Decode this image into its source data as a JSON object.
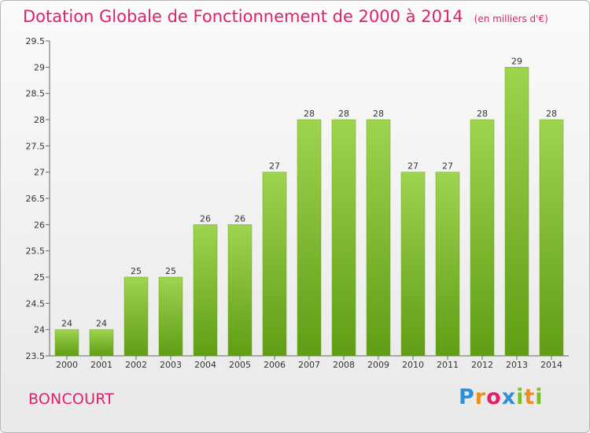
{
  "header": {
    "title": "Dotation Globale de Fonctionnement de 2000 à 2014",
    "unit": "(en milliers d'€)"
  },
  "footer": {
    "commune": "BONCOURT",
    "logo": "Proxiti"
  },
  "colors": {
    "title": "#e0206a",
    "bar_top": "#9fd44e",
    "bar_bottom": "#5f9e14"
  },
  "chart_data": {
    "type": "bar",
    "title": "Dotation Globale de Fonctionnement de 2000 à 2014",
    "subtitle": "(en milliers d'€)",
    "categories": [
      "2000",
      "2001",
      "2002",
      "2003",
      "2004",
      "2005",
      "2006",
      "2007",
      "2008",
      "2009",
      "2010",
      "2011",
      "2012",
      "2013",
      "2014"
    ],
    "values": [
      24,
      24,
      25,
      25,
      26,
      26,
      27,
      28,
      28,
      28,
      27,
      27,
      28,
      29,
      28
    ],
    "ylim": [
      23.5,
      29.5
    ],
    "yticks": [
      "23.5",
      "24",
      "24.5",
      "25",
      "25.5",
      "26",
      "26.5",
      "27",
      "27.5",
      "28",
      "28.5",
      "29",
      "29.5"
    ],
    "grid": false,
    "legend": "none"
  }
}
